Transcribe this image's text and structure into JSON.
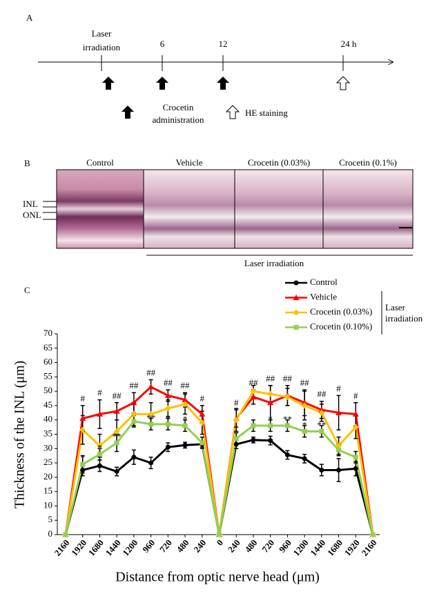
{
  "panel_a": {
    "letter": "A",
    "laser": [
      "Laser",
      "irradiation"
    ],
    "t6": "6",
    "t12": "12",
    "t24": "24 h",
    "crocetin": [
      "Crocetin",
      "administration"
    ],
    "he": "HE staining"
  },
  "panel_b": {
    "letter": "B",
    "columns": [
      "Control",
      "Vehicle",
      "Crocetin  (0.03%)",
      "Crocetin  (0.1%)"
    ],
    "inl": "INL",
    "onl": "ONL",
    "laser": "Laser irradiation"
  },
  "chart_data": {
    "type": "line",
    "letter": "C",
    "ylabel": "Thickness of the INL (μm)",
    "xlabel": "Distance from optic nerve head (μm)",
    "bracket": [
      "Laser",
      "irradiation"
    ],
    "categories": [
      "2160",
      "1920",
      "1680",
      "1440",
      "1200",
      "960",
      "720",
      "480",
      "240",
      "0",
      "240",
      "480",
      "720",
      "960",
      "1200",
      "1440",
      "1680",
      "1920",
      "2160"
    ],
    "ylim": [
      0,
      70
    ],
    "yticks": [
      0,
      5,
      10,
      15,
      20,
      25,
      30,
      35,
      40,
      45,
      50,
      55,
      60,
      65,
      70
    ],
    "series": [
      {
        "name": "Control",
        "color": "#000000",
        "marker": "circle",
        "values": [
          0,
          22.5,
          24,
          22,
          27,
          25,
          30.5,
          31.2,
          31.5,
          0,
          31.5,
          33,
          32.8,
          27.8,
          26.5,
          22.5,
          22.5,
          23,
          0
        ],
        "errors": [
          0,
          2,
          2,
          1.5,
          2.5,
          2,
          1.5,
          1,
          1,
          0,
          1.5,
          1,
          1.5,
          1.5,
          1.5,
          2,
          4,
          2.5,
          0
        ]
      },
      {
        "name": "Vehicle",
        "color": "#ff0000",
        "marker": "triangle",
        "values": [
          0,
          40.5,
          42,
          43,
          46,
          51.5,
          48.5,
          47,
          42,
          0,
          40.5,
          48,
          46,
          48.5,
          46,
          43.5,
          42.5,
          42,
          0
        ],
        "errors": [
          0,
          4.5,
          5,
          3,
          3.5,
          2.5,
          2,
          2.5,
          3,
          0,
          3,
          2.5,
          6,
          3.5,
          4.5,
          3,
          6,
          4,
          0
        ],
        "marks": [
          null,
          "#",
          "#",
          "##",
          "##",
          "##",
          "##",
          "##",
          "#",
          null,
          "#",
          "##",
          "##",
          "##",
          "##",
          "##",
          "#",
          "#",
          null
        ]
      },
      {
        "name": "Crocetin (0.03%)",
        "color": "#ffc000",
        "marker": "diamond",
        "values": [
          0,
          36.5,
          31,
          36,
          42,
          42,
          44,
          45.5,
          39,
          0,
          40,
          50,
          49,
          48,
          45,
          42.5,
          31,
          37.5,
          0
        ],
        "errors": [
          0,
          5,
          4,
          4,
          4,
          4,
          3,
          3.5,
          4,
          0,
          4,
          2,
          3,
          3,
          5,
          3,
          3,
          4,
          0
        ]
      },
      {
        "name": "Crocetin (0.10%)",
        "color": "#92d050",
        "marker": "square",
        "values": [
          0,
          24.5,
          28,
          32,
          39.5,
          38.5,
          38.5,
          38,
          32,
          0,
          33.5,
          38,
          38,
          38,
          36,
          36,
          29.5,
          27,
          0
        ],
        "errors": [
          0,
          3,
          2,
          3,
          2,
          2,
          2,
          2,
          2,
          0,
          2,
          2,
          2,
          2,
          2,
          2,
          2,
          2,
          0
        ],
        "marks": [
          null,
          "*",
          "*",
          "**",
          null,
          "**",
          "*",
          "*",
          null,
          null,
          null,
          null,
          "*",
          "**",
          "*",
          "**",
          null,
          null,
          null
        ]
      }
    ]
  }
}
